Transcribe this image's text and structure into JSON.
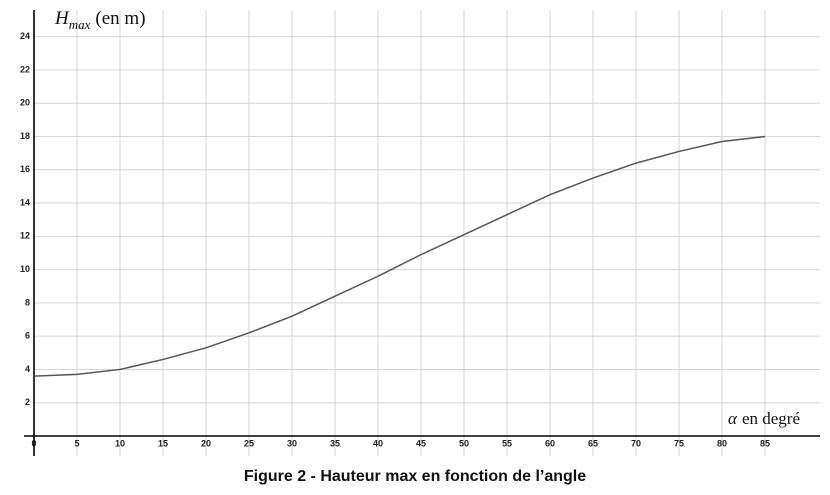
{
  "chart_data": {
    "type": "line",
    "caption": "Figure 2 - Hauteur max en fonction de l’angle",
    "y_label": {
      "symbol": "H",
      "subscript": "max",
      "unit": "(en m)"
    },
    "x_label": {
      "symbol": "α",
      "unit": "en degré"
    },
    "x": [
      0,
      5,
      10,
      15,
      20,
      25,
      30,
      35,
      40,
      45,
      50,
      55,
      60,
      65,
      70,
      75,
      80,
      85
    ],
    "series": [
      {
        "name": "H max",
        "color": "#555555",
        "values": [
          3.6,
          3.7,
          4.0,
          4.6,
          5.3,
          6.2,
          7.2,
          8.4,
          9.6,
          10.9,
          12.1,
          13.3,
          14.5,
          15.5,
          16.4,
          17.1,
          17.7,
          18.0
        ]
      }
    ],
    "xlim": [
      0,
      90
    ],
    "ylim": [
      0,
      25
    ],
    "xticks": [
      0,
      5,
      10,
      15,
      20,
      25,
      30,
      35,
      40,
      45,
      50,
      55,
      60,
      65,
      70,
      75,
      80,
      85
    ],
    "yticks": [
      2,
      4,
      6,
      8,
      10,
      12,
      14,
      16,
      18,
      20,
      22,
      24
    ],
    "grid": true
  }
}
